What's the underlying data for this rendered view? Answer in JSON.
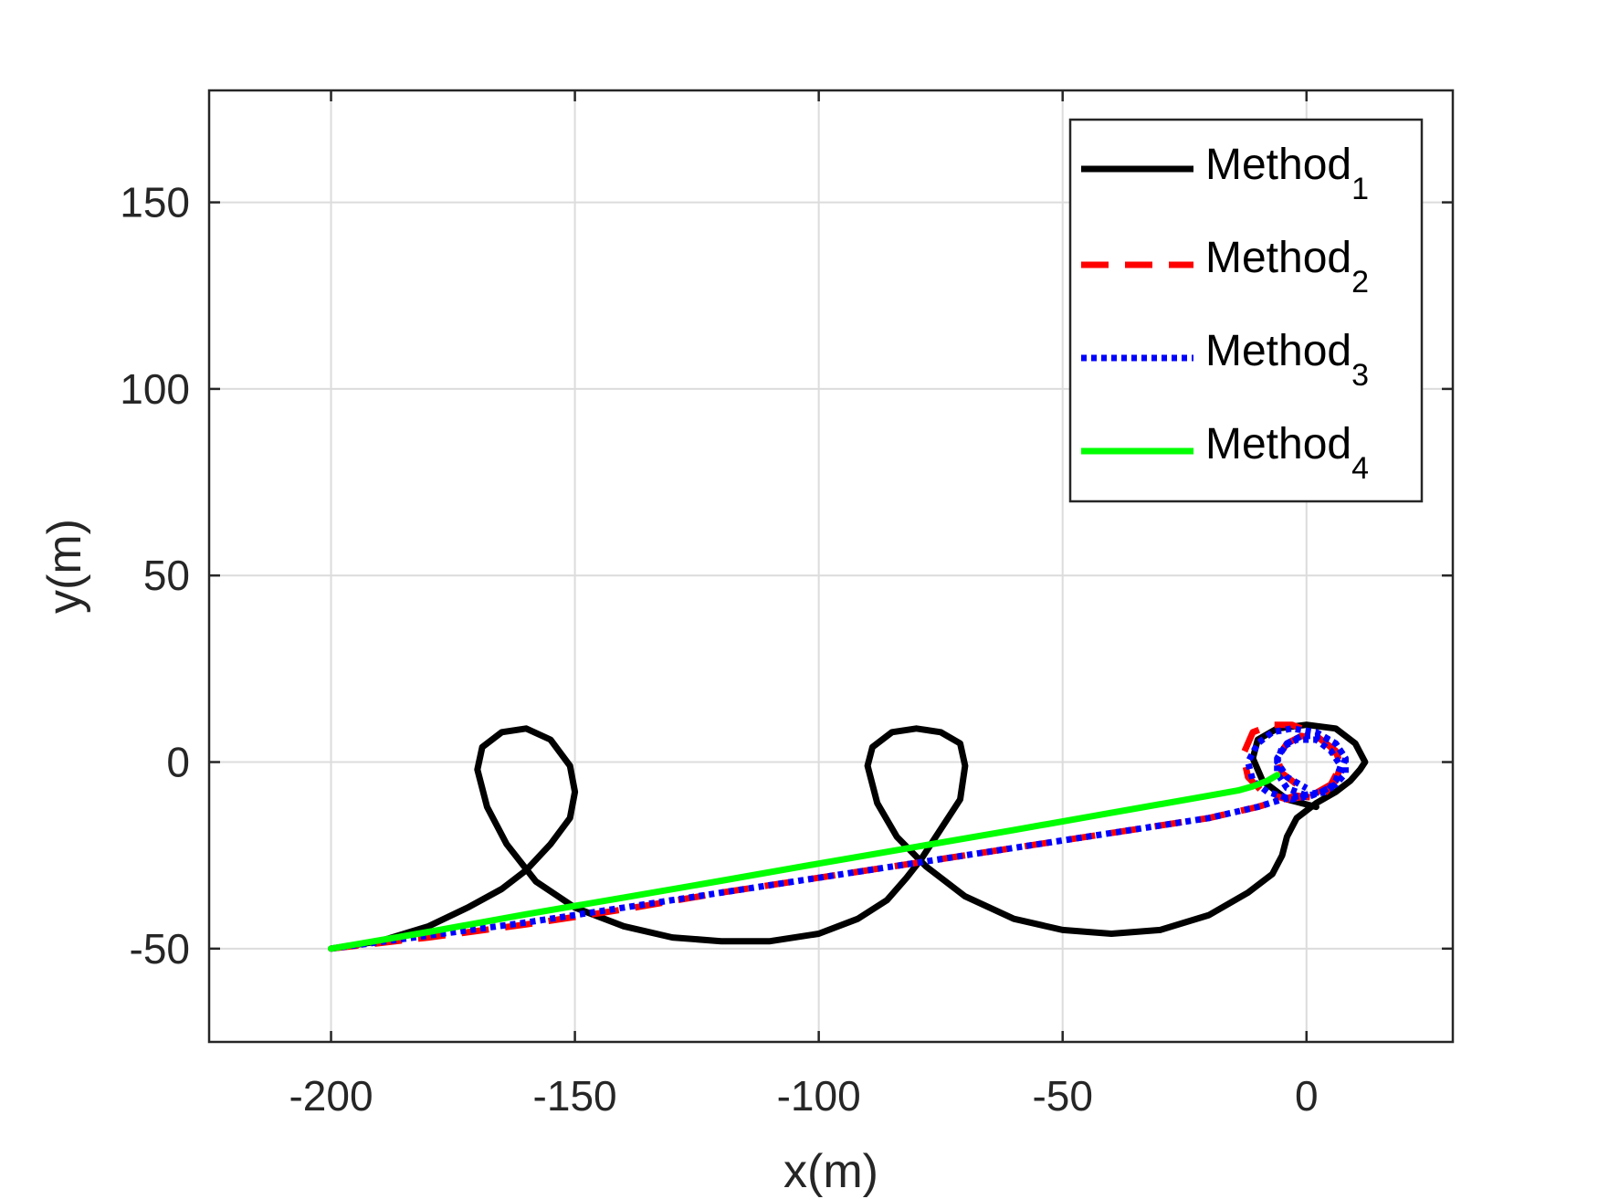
{
  "chart_data": {
    "type": "line",
    "title": "",
    "xlabel": "x(m)",
    "ylabel": "y(m)",
    "xlim": [
      -225,
      30
    ],
    "ylim": [
      -75,
      180
    ],
    "xticks": [
      -200,
      -150,
      -100,
      -50,
      0
    ],
    "yticks": [
      -50,
      0,
      50,
      100,
      150
    ],
    "xtick_labels": [
      "-200",
      "-150",
      "-100",
      "-50",
      "0"
    ],
    "ytick_labels": [
      "-50",
      "0",
      "50",
      "100",
      "150"
    ],
    "grid": true,
    "legend": {
      "position": "top-right",
      "entries": [
        {
          "base": "Method",
          "sub": "1"
        },
        {
          "base": "Method",
          "sub": "2"
        },
        {
          "base": "Method",
          "sub": "3"
        },
        {
          "base": "Method",
          "sub": "4"
        }
      ]
    },
    "series": [
      {
        "name": "Method1",
        "color": "#000000",
        "dash": "solid",
        "x": [
          -200,
          -190,
          -180,
          -172,
          -165,
          -160,
          -155,
          -151,
          -150,
          -151,
          -155,
          -160,
          -165,
          -169,
          -170,
          -168,
          -164,
          -158,
          -150,
          -140,
          -130,
          -120,
          -110,
          -100,
          -92,
          -86,
          -82,
          -79,
          -75,
          -71,
          -70,
          -71,
          -75,
          -80,
          -85,
          -89,
          -90,
          -88,
          -84,
          -78,
          -70,
          -60,
          -50,
          -40,
          -30,
          -20,
          -12,
          -7,
          -5,
          -4,
          -2,
          2,
          6,
          9,
          11,
          12,
          10,
          6,
          0,
          -6,
          -10,
          -11,
          -9,
          -4,
          2
        ],
        "y": [
          -50,
          -48,
          -44,
          -39,
          -34,
          -29,
          -22,
          -15,
          -8,
          -1,
          6,
          9,
          8,
          4,
          -2,
          -12,
          -22,
          -32,
          -39,
          -44,
          -47,
          -48,
          -48,
          -46,
          -42,
          -37,
          -31,
          -26,
          -18,
          -10,
          -1,
          5,
          8,
          9,
          8,
          4,
          -1,
          -11,
          -20,
          -28,
          -36,
          -42,
          -45,
          -46,
          -45,
          -41,
          -35,
          -30,
          -25,
          -20,
          -15,
          -11,
          -8,
          -5,
          -2,
          0,
          5,
          9,
          10,
          9,
          6,
          1,
          -5,
          -10,
          -12
        ]
      },
      {
        "name": "Method2",
        "color": "#ff0000",
        "dash": "dashed",
        "x": [
          -200,
          -180,
          -160,
          -140,
          -120,
          -100,
          -80,
          -60,
          -40,
          -20,
          -10,
          -5,
          -2,
          1,
          4,
          6,
          7,
          5,
          1,
          -3,
          -7,
          -11,
          -13,
          -12,
          -9,
          -4,
          1,
          5,
          7,
          6,
          3,
          -1,
          -4,
          -6,
          -5,
          -2
        ],
        "y": [
          -50,
          -47,
          -43.5,
          -39.5,
          -35,
          -31,
          -27,
          -23,
          -19,
          -15,
          -12,
          -10,
          -9,
          -9.5,
          -8,
          -5,
          -1,
          4,
          8,
          10,
          10,
          8,
          2,
          -4,
          -8,
          -10,
          -9,
          -6,
          -1,
          3,
          6,
          7,
          5,
          1,
          -3,
          -6
        ]
      },
      {
        "name": "Method3",
        "color": "#0000ff",
        "dash": "dotted",
        "x": [
          -200,
          -180,
          -160,
          -140,
          -120,
          -100,
          -80,
          -60,
          -40,
          -20,
          -10,
          -5,
          -1,
          3,
          6,
          8,
          8,
          6,
          2,
          -3,
          -7,
          -10,
          -12,
          -11,
          -8,
          -3,
          1,
          5,
          7,
          8,
          6,
          3,
          -1,
          -4,
          -6,
          -6,
          -4,
          0,
          4,
          6,
          7,
          5,
          2,
          -2,
          -5,
          -6,
          -4,
          0
        ],
        "y": [
          -50,
          -46.5,
          -43,
          -39,
          -35,
          -31,
          -27,
          -23,
          -19,
          -15,
          -12,
          -10,
          -9,
          -8,
          -6,
          -3,
          1,
          5,
          8,
          9,
          8,
          5,
          0,
          -5,
          -8,
          -10,
          -9,
          -7,
          -3,
          1,
          5,
          7,
          7,
          5,
          1,
          -3,
          -7,
          -9,
          -8,
          -5,
          -1,
          3,
          6,
          6,
          4,
          0,
          -4,
          -7
        ]
      },
      {
        "name": "Method4",
        "color": "#00ff00",
        "dash": "solid",
        "x": [
          -200,
          -180,
          -160,
          -140,
          -120,
          -100,
          -80,
          -60,
          -40,
          -20,
          -14,
          -11,
          -8,
          -6
        ],
        "y": [
          -50,
          -45.5,
          -40.8,
          -36.3,
          -31.8,
          -27.2,
          -22.7,
          -18.2,
          -13.6,
          -9.0,
          -7.6,
          -6.5,
          -5.0,
          -3.5
        ]
      }
    ]
  }
}
